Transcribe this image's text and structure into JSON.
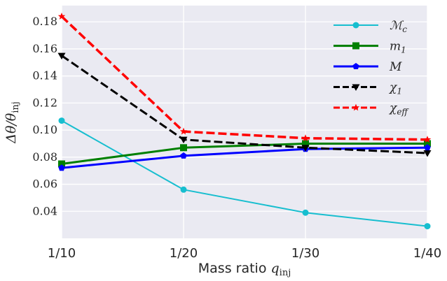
{
  "chart_data": {
    "type": "line",
    "categories": [
      "1/10",
      "1/20",
      "1/30",
      "1/40"
    ],
    "xlabel": "Mass ratio",
    "xlabel_symbol": "q",
    "xlabel_sub": "inj",
    "ylabel": "Δθ/θ",
    "ylabel_sub": "inj",
    "ylim": [
      0.02,
      0.192
    ],
    "yticks": [
      "0.04",
      "0.06",
      "0.08",
      "0.10",
      "0.12",
      "0.14",
      "0.16",
      "0.18"
    ],
    "grid": true,
    "legend_position": "top-right",
    "series": [
      {
        "name": "ℳ",
        "name_sub": "c",
        "color": "#17becf",
        "marker": "circle",
        "dash": "solid",
        "width": 2,
        "values": [
          0.107,
          0.056,
          0.039,
          0.029
        ]
      },
      {
        "name": "m",
        "name_sub": "1",
        "color": "#008000",
        "marker": "square",
        "dash": "solid",
        "width": 3,
        "values": [
          0.075,
          0.087,
          0.09,
          0.09
        ]
      },
      {
        "name": "M",
        "name_sub": "",
        "color": "#0000ff",
        "marker": "pentagon",
        "dash": "solid",
        "width": 3,
        "values": [
          0.072,
          0.081,
          0.086,
          0.087
        ]
      },
      {
        "name": "χ",
        "name_sub": "1",
        "color": "#000000",
        "marker": "triangle-down",
        "dash": "dashed",
        "width": 3,
        "values": [
          0.155,
          0.093,
          0.087,
          0.083
        ]
      },
      {
        "name": "χ",
        "name_sub": "eff",
        "color": "#ff0000",
        "marker": "star",
        "dash": "dashed",
        "width": 3.5,
        "values": [
          0.184,
          0.099,
          0.094,
          0.093
        ]
      }
    ]
  }
}
